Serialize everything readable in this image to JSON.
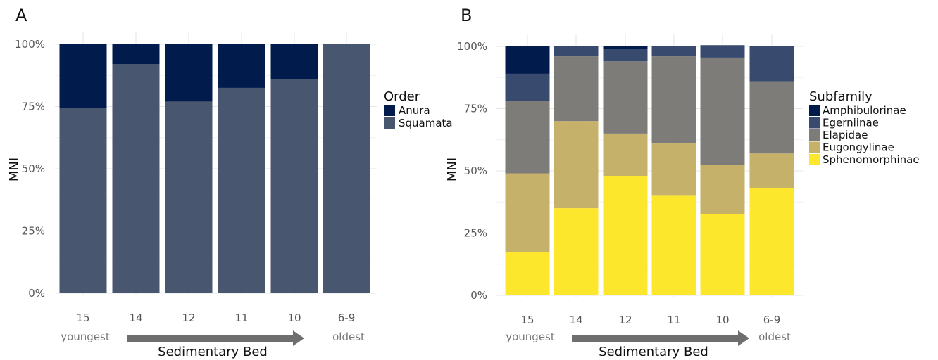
{
  "chart_data": [
    {
      "panel": "A",
      "type": "bar",
      "stacked": true,
      "categories": [
        "15",
        "14",
        "12",
        "11",
        "10",
        "6-9"
      ],
      "ylabel": "MNI",
      "xlabel": "Sedimentary Bed",
      "yticks": [
        "0%",
        "25%",
        "50%",
        "75%",
        "100%"
      ],
      "ylim": [
        0,
        100
      ],
      "direction_labels": {
        "start": "youngest",
        "end": "oldest"
      },
      "legend_title": "Order",
      "legend_position": "right",
      "series": [
        {
          "name": "Squamata",
          "color": "#48566F",
          "values": [
            74.5,
            92,
            77,
            82.5,
            86,
            100
          ]
        },
        {
          "name": "Anura",
          "color": "#011B4D",
          "values": [
            25.5,
            8,
            23,
            17.5,
            14,
            0
          ]
        }
      ],
      "legend_order": [
        "Anura",
        "Squamata"
      ]
    },
    {
      "panel": "B",
      "type": "bar",
      "stacked": true,
      "categories": [
        "15",
        "14",
        "12",
        "11",
        "10",
        "6-9"
      ],
      "ylabel": "MNI",
      "xlabel": "Sedimentary Bed",
      "yticks": [
        "0%",
        "25%",
        "50%",
        "75%",
        "100%"
      ],
      "ylim": [
        0,
        100
      ],
      "direction_labels": {
        "start": "youngest",
        "end": "oldest"
      },
      "legend_title": "Subfamily",
      "legend_position": "right",
      "series": [
        {
          "name": "Sphenomorphinae",
          "color": "#FDE72C",
          "values": [
            17.5,
            35,
            48,
            40,
            32.5,
            43
          ]
        },
        {
          "name": "Eugongylinae",
          "color": "#C6B16A",
          "values": [
            31.5,
            35,
            17,
            21,
            20,
            14
          ]
        },
        {
          "name": "Elapidae",
          "color": "#7D7C78",
          "values": [
            29,
            26,
            29,
            35,
            43,
            29
          ]
        },
        {
          "name": "Egerniinae",
          "color": "#384B6F",
          "values": [
            11,
            4,
            5,
            4,
            5,
            14
          ]
        },
        {
          "name": "Amphibulorinae",
          "color": "#011B4D",
          "values": [
            11,
            0,
            1,
            0,
            0,
            0
          ]
        }
      ],
      "legend_order": [
        "Amphibulorinae",
        "Egerniinae",
        "Elapidae",
        "Eugongylinae",
        "Sphenomorphinae"
      ]
    }
  ]
}
